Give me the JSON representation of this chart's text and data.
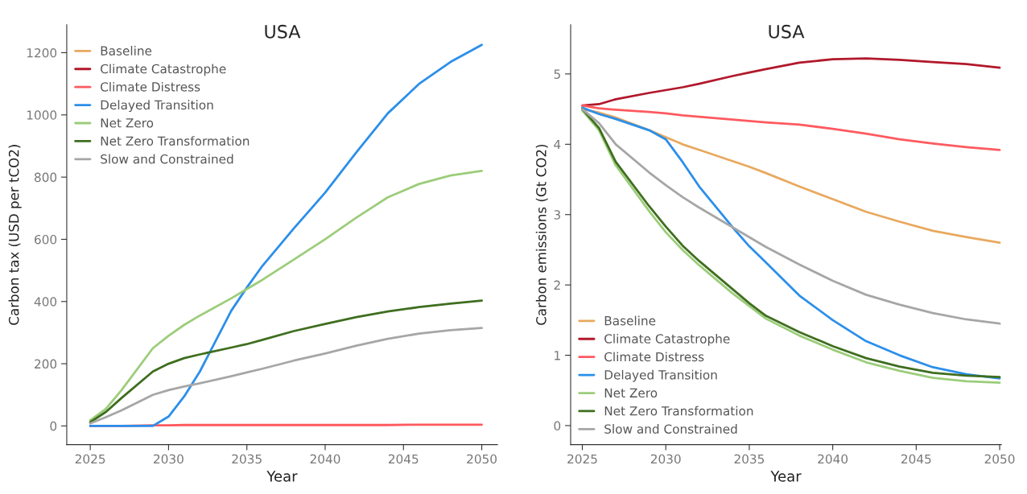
{
  "chart_data": [
    {
      "type": "line",
      "title": "USA",
      "xlabel": "Year",
      "ylabel": "Carbon tax (USD per tCO2)",
      "x": [
        2025,
        2026,
        2027,
        2029,
        2030,
        2031,
        2032,
        2034,
        2035,
        2036,
        2038,
        2040,
        2042,
        2044,
        2046,
        2048,
        2050
      ],
      "xlim": [
        2023.5,
        2051
      ],
      "xticks": [
        2025,
        2030,
        2035,
        2040,
        2045,
        2050
      ],
      "ylim": [
        -60,
        1290
      ],
      "yticks": [
        0,
        200,
        400,
        600,
        800,
        1000,
        1200
      ],
      "grid": false,
      "legend": "top left",
      "marker": "none",
      "line_style": "solid",
      "series": [
        {
          "name": "Baseline",
          "color": "#e8a95f",
          "values": [
            null,
            null,
            null,
            null,
            null,
            null,
            null,
            null,
            null,
            null,
            null,
            null,
            null,
            null,
            null,
            null,
            null
          ]
        },
        {
          "name": "Climate Catastrophe",
          "color": "#b2182b",
          "values": [
            null,
            null,
            null,
            null,
            null,
            null,
            null,
            null,
            null,
            null,
            null,
            null,
            null,
            null,
            null,
            null,
            null
          ]
        },
        {
          "name": "Climate Distress",
          "color": "#ff5a5f",
          "values": [
            0,
            0,
            0,
            2,
            2,
            3,
            3,
            3,
            3,
            3,
            3,
            3,
            3,
            3,
            4,
            4,
            4
          ]
        },
        {
          "name": "Delayed Transition",
          "color": "#2b8fea",
          "values": [
            0,
            0,
            0,
            0,
            30,
            95,
            175,
            370,
            445,
            515,
            635,
            750,
            880,
            1005,
            1100,
            1170,
            1225
          ]
        },
        {
          "name": "Net Zero",
          "color": "#9ccd7a",
          "values": [
            18,
            55,
            115,
            250,
            290,
            325,
            355,
            410,
            440,
            470,
            535,
            600,
            670,
            735,
            778,
            805,
            820
          ]
        },
        {
          "name": "Net Zero Transformation",
          "color": "#3f6e1f",
          "values": [
            12,
            45,
            90,
            175,
            200,
            218,
            230,
            252,
            263,
            277,
            305,
            328,
            350,
            368,
            382,
            393,
            403
          ]
        },
        {
          "name": "Slow and Constrained",
          "color": "#a6a6a6",
          "values": [
            8,
            28,
            50,
            100,
            115,
            127,
            137,
            160,
            172,
            184,
            210,
            233,
            258,
            280,
            297,
            308,
            315
          ]
        }
      ]
    },
    {
      "type": "line",
      "title": "USA",
      "xlabel": "Year",
      "ylabel": "Carbon emissions (Gt CO2)",
      "x": [
        2025,
        2026,
        2027,
        2029,
        2030,
        2031,
        2032,
        2034,
        2035,
        2036,
        2038,
        2040,
        2042,
        2044,
        2046,
        2048,
        2050
      ],
      "xlim": [
        2024.3,
        2050.1
      ],
      "xticks": [
        2025,
        2030,
        2035,
        2040,
        2045,
        2050
      ],
      "ylim": [
        -0.27,
        5.7
      ],
      "yticks": [
        0,
        1,
        2,
        3,
        4,
        5
      ],
      "grid": false,
      "legend": "bottom left",
      "marker": "none",
      "line_style": "solid",
      "series": [
        {
          "name": "Baseline",
          "color": "#e8a95f",
          "values": [
            4.5,
            4.45,
            4.38,
            4.2,
            4.1,
            4.0,
            3.92,
            3.76,
            3.68,
            3.59,
            3.4,
            3.22,
            3.04,
            2.9,
            2.77,
            2.68,
            2.6
          ]
        },
        {
          "name": "Climate Catastrophe",
          "color": "#b2182b",
          "values": [
            4.55,
            4.57,
            4.64,
            4.73,
            4.77,
            4.81,
            4.86,
            4.97,
            5.02,
            5.07,
            5.16,
            5.21,
            5.22,
            5.2,
            5.17,
            5.14,
            5.09
          ]
        },
        {
          "name": "Climate Distress",
          "color": "#ff5a5f",
          "values": [
            4.55,
            4.51,
            4.49,
            4.46,
            4.44,
            4.41,
            4.39,
            4.35,
            4.33,
            4.31,
            4.28,
            4.22,
            4.15,
            4.07,
            4.01,
            3.96,
            3.92
          ]
        },
        {
          "name": "Delayed Transition",
          "color": "#2b8fea",
          "values": [
            4.52,
            4.43,
            4.36,
            4.2,
            4.07,
            3.75,
            3.4,
            2.82,
            2.55,
            2.32,
            1.85,
            1.5,
            1.2,
            1.0,
            0.83,
            0.73,
            0.67
          ]
        },
        {
          "name": "Net Zero",
          "color": "#9ccd7a",
          "values": [
            4.48,
            4.2,
            3.7,
            3.05,
            2.75,
            2.5,
            2.28,
            1.88,
            1.7,
            1.52,
            1.28,
            1.08,
            0.9,
            0.78,
            0.68,
            0.63,
            0.61
          ]
        },
        {
          "name": "Net Zero Transformation",
          "color": "#3f6e1f",
          "values": [
            4.5,
            4.23,
            3.75,
            3.12,
            2.83,
            2.56,
            2.34,
            1.94,
            1.74,
            1.56,
            1.33,
            1.13,
            0.96,
            0.84,
            0.75,
            0.71,
            0.69
          ]
        },
        {
          "name": "Slow and Constrained",
          "color": "#a6a6a6",
          "values": [
            4.5,
            4.3,
            4.0,
            3.6,
            3.42,
            3.25,
            3.1,
            2.82,
            2.68,
            2.54,
            2.29,
            2.06,
            1.86,
            1.72,
            1.6,
            1.51,
            1.45
          ]
        }
      ]
    }
  ]
}
